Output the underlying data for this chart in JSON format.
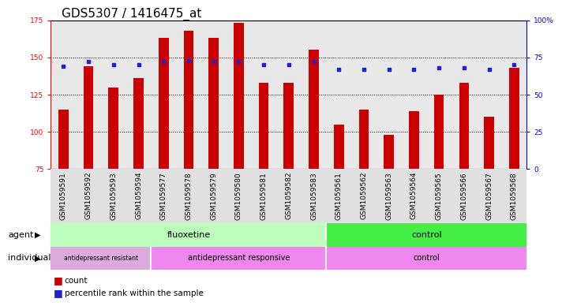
{
  "title": "GDS5307 / 1416475_at",
  "samples": [
    "GSM1059591",
    "GSM1059592",
    "GSM1059593",
    "GSM1059594",
    "GSM1059577",
    "GSM1059578",
    "GSM1059579",
    "GSM1059580",
    "GSM1059581",
    "GSM1059582",
    "GSM1059583",
    "GSM1059561",
    "GSM1059562",
    "GSM1059563",
    "GSM1059564",
    "GSM1059565",
    "GSM1059566",
    "GSM1059567",
    "GSM1059568"
  ],
  "counts": [
    115,
    144,
    130,
    136,
    163,
    168,
    163,
    173,
    133,
    133,
    155,
    105,
    115,
    98,
    114,
    125,
    133,
    110,
    143
  ],
  "percentiles": [
    69,
    72,
    70,
    70,
    72,
    73,
    72,
    72,
    70,
    70,
    72,
    67,
    67,
    67,
    67,
    68,
    68,
    67,
    70
  ],
  "ylim_left": [
    75,
    175
  ],
  "ylim_right": [
    0,
    100
  ],
  "yticks_left": [
    75,
    100,
    125,
    150,
    175
  ],
  "yticks_right": [
    0,
    25,
    50,
    75,
    100
  ],
  "ytick_labels_right": [
    "0",
    "25",
    "50",
    "75",
    "100%"
  ],
  "bar_color": "#cc0000",
  "dot_color": "#2222cc",
  "fluoxetine_color_light": "#bbffbb",
  "fluoxetine_color": "#bbffbb",
  "control_agent_color": "#44ee44",
  "resist_color": "#ddaadd",
  "responsive_color": "#ee88ee",
  "control_indiv_color": "#ee88ee",
  "legend_count_label": "count",
  "legend_pct_label": "percentile rank within the sample",
  "title_fontsize": 11,
  "tick_fontsize": 6.5,
  "n_fluoxetine": 11,
  "n_resist": 4
}
